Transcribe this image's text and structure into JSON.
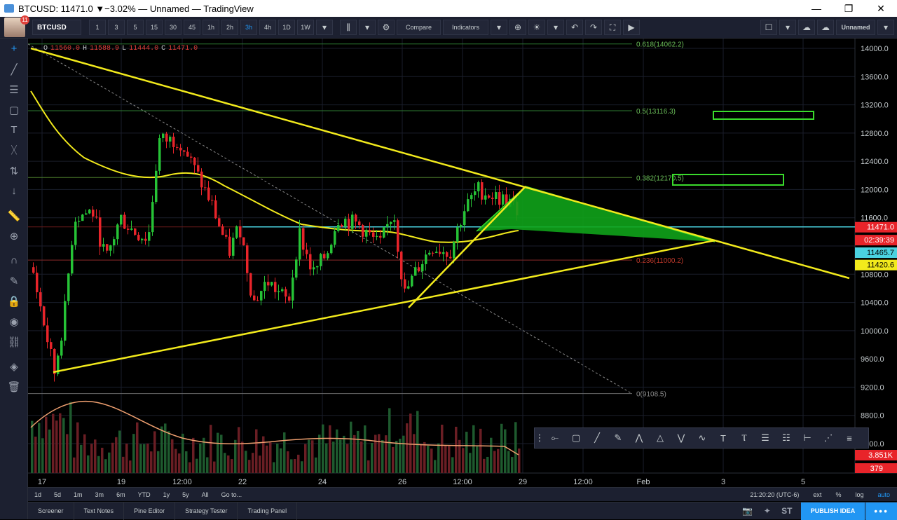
{
  "window": {
    "title": "BTCUSD: 11471.0 ▼−3.02% — Unnamed — TradingView",
    "minimize": "—",
    "restore": "❐",
    "close": "✕"
  },
  "toolbar": {
    "avatar_badge": "11",
    "symbol": "BTCUSD",
    "intervals": [
      "1",
      "3",
      "5",
      "15",
      "30",
      "45",
      "1h",
      "2h",
      "3h",
      "4h",
      "1D",
      "1W"
    ],
    "active_interval": "3h",
    "compare_label": "Compare",
    "indicators_label": "Indicators",
    "layout_name": "Unnamed"
  },
  "ohlc": {
    "o_label": "O",
    "o": "11560.0",
    "h_label": "H",
    "h": "11588.9",
    "l_label": "L",
    "l": "11444.0",
    "c_label": "C",
    "c": "11471.0"
  },
  "price_axis": {
    "ticks": [
      "14000.0",
      "13600.0",
      "13200.0",
      "12800.0",
      "12400.0",
      "12000.0",
      "11600.0",
      "10800.0",
      "10400.0",
      "10000.0",
      "9600.0",
      "9200.0",
      "8800.0",
      "8400.0"
    ],
    "last_price": "11471.0",
    "countdown": "02:39:39",
    "ma1_value": "11465.7",
    "ma2_value": "11420.6",
    "volume_value": "3.851K",
    "volume_ma": "379"
  },
  "time_axis": {
    "labels": [
      "17",
      "19",
      "12:00",
      "22",
      "24",
      "26",
      "12:00",
      "29",
      "12:00",
      "Feb",
      "3",
      "5"
    ]
  },
  "fib": {
    "levels": [
      {
        "label": "0.618(14062.2)",
        "price": 14062.2
      },
      {
        "label": "0.5(13116.3)",
        "price": 13116.3
      },
      {
        "label": "0.382(12170.5)",
        "price": 12170.5
      },
      {
        "label": "0.236(11000.2)",
        "price": 11000.2
      },
      {
        "label": "0(9108.5)",
        "price": 9108.5
      }
    ]
  },
  "bottom_ranges": [
    "1d",
    "5d",
    "1m",
    "3m",
    "6m",
    "YTD",
    "1y",
    "5y",
    "All",
    "Go to..."
  ],
  "bottom_right": {
    "time": "21:20:20 (UTC-6)",
    "ext": "ext",
    "pct": "%",
    "log": "log",
    "auto": "auto"
  },
  "footer_tabs": [
    "Screener",
    "Text Notes",
    "Pine Editor",
    "Strategy Tester",
    "Trading Panel"
  ],
  "footer_right": {
    "st": "ST",
    "publish": "PUBLISH IDEA",
    "more": "•••"
  },
  "colors": {
    "up": "#26c236",
    "down": "#e8242a",
    "trendline": "#f2ea1c",
    "ma": "#f2ea1c",
    "horizontal": "#4ad2e0",
    "triangle_fill": "#10a31a",
    "box": "#3adb2c",
    "accent": "#2196f3"
  },
  "chart_data": {
    "type": "candlestick",
    "symbol": "BTCUSD",
    "interval": "3h",
    "y_range": [
      8100,
      14150
    ],
    "last": 11471.0,
    "indicators": [
      "moving average",
      "volume",
      "volume MA"
    ],
    "candles_approx": [
      [
        10800,
        11000,
        9300,
        9450
      ],
      [
        9450,
        10300,
        9350,
        10100
      ],
      [
        10100,
        11700,
        10000,
        11500
      ],
      [
        11500,
        11900,
        11100,
        11300
      ],
      [
        11300,
        11800,
        10900,
        11700
      ],
      [
        11700,
        11800,
        11000,
        11100
      ],
      [
        11100,
        11500,
        10900,
        11400
      ],
      [
        11400,
        12800,
        11300,
        12650
      ],
      [
        12650,
        12900,
        12400,
        12500
      ],
      [
        12500,
        12600,
        12100,
        12200
      ],
      [
        12200,
        12250,
        11500,
        11600
      ],
      [
        11600,
        11700,
        11000,
        11200
      ],
      [
        11200,
        11500,
        11000,
        11400
      ],
      [
        11400,
        11500,
        10300,
        10500
      ],
      [
        10500,
        10800,
        10300,
        10700
      ],
      [
        10700,
        11000,
        10100,
        10300
      ],
      [
        10300,
        11100,
        10200,
        11000
      ],
      [
        11000,
        11200,
        10700,
        10800
      ],
      [
        10800,
        11400,
        10700,
        11300
      ],
      [
        11300,
        11700,
        11200,
        11500
      ],
      [
        11500,
        11600,
        11100,
        11200
      ],
      [
        11200,
        11400,
        11000,
        11300
      ],
      [
        11300,
        11700,
        11100,
        11600
      ],
      [
        11600,
        11700,
        10400,
        10500
      ],
      [
        10500,
        11200,
        10400,
        11100
      ],
      [
        11100,
        11300,
        10900,
        11200
      ],
      [
        11200,
        11800,
        11100,
        11700
      ],
      [
        11700,
        12100,
        11600,
        12000
      ],
      [
        12000,
        12050,
        11700,
        11800
      ],
      [
        11800,
        11850,
        11440,
        11471
      ]
    ]
  }
}
